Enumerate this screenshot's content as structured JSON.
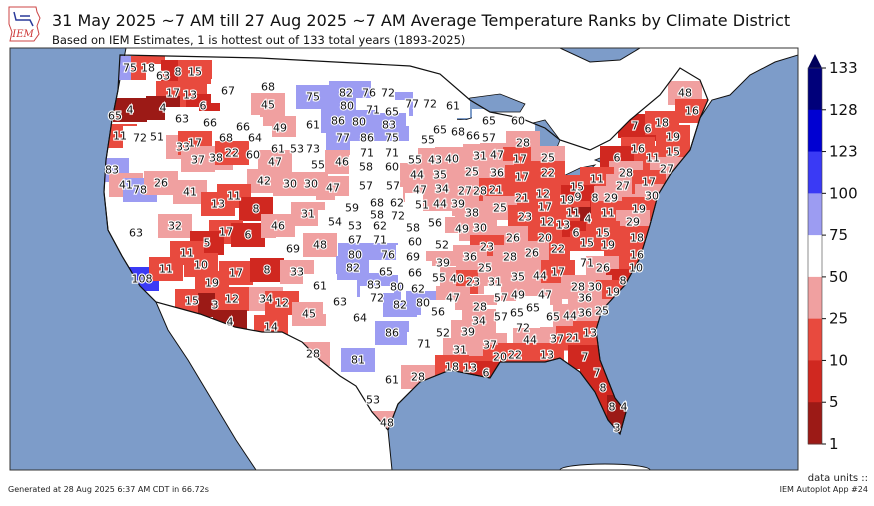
{
  "header": {
    "logo_text": "IEM",
    "title": "31 May 2025 ~7 AM till 27 Aug 2025 ~7 AM Average Temperature Ranks by Climate District",
    "subtitle": "Based on IEM Estimates, 1 is hottest out of 133 total years (1893-2025)"
  },
  "colorbar": {
    "ticks": [
      "133",
      "128",
      "123",
      "100",
      "75",
      "50",
      "25",
      "10",
      "5",
      "1"
    ],
    "bins": [
      {
        "min": 128,
        "max": 133,
        "color": "#00007a"
      },
      {
        "min": 123,
        "max": 128,
        "color": "#0000d2"
      },
      {
        "min": 100,
        "max": 123,
        "color": "#3a3af5"
      },
      {
        "min": 75,
        "max": 100,
        "color": "#9c9cf2"
      },
      {
        "min": 50,
        "max": 75,
        "color": "#ffffff"
      },
      {
        "min": 25,
        "max": 50,
        "color": "#f0a0a0"
      },
      {
        "min": 10,
        "max": 25,
        "color": "#e84a3e"
      },
      {
        "min": 5,
        "max": 10,
        "color": "#d02820"
      },
      {
        "min": 1,
        "max": 5,
        "color": "#9c1a16"
      }
    ],
    "extend_color": "#00005a"
  },
  "colors": {
    "ocean": "#7d9cc9",
    "land": "#ffffff",
    "border": "#111111"
  },
  "district_ranks": [
    75,
    18,
    63,
    8,
    15,
    17,
    13,
    6,
    65,
    4,
    4,
    63,
    66,
    11,
    72,
    51,
    67,
    68,
    45,
    75,
    49,
    61,
    66,
    68,
    64,
    61,
    53,
    73,
    60,
    47,
    55,
    33,
    17,
    37,
    38,
    22,
    83,
    41,
    78,
    26,
    41,
    42,
    30,
    30,
    47,
    13,
    11,
    8,
    32,
    17,
    6,
    46,
    31,
    54,
    63,
    5,
    11,
    69,
    48,
    82,
    76,
    72,
    77,
    72,
    61,
    80,
    71,
    65,
    86,
    80,
    83,
    77,
    86,
    75,
    46,
    71,
    58,
    71,
    60,
    57,
    57,
    59,
    68,
    58,
    62,
    72,
    53,
    62,
    67,
    71,
    80,
    76,
    82,
    65,
    83,
    80,
    72,
    82,
    108,
    11,
    10,
    17,
    8,
    33,
    19,
    15,
    3,
    12,
    4,
    34,
    12,
    61,
    45,
    14,
    63,
    64,
    86,
    28,
    81,
    61,
    53,
    48,
    65,
    60,
    65,
    68,
    66,
    57,
    55,
    28,
    55,
    43,
    40,
    31,
    47,
    17,
    25,
    25,
    36,
    17,
    22,
    44,
    35,
    48,
    16,
    7,
    6,
    18,
    19,
    16,
    15,
    6,
    11,
    27,
    28,
    11,
    27,
    17,
    15,
    19,
    9,
    8,
    29,
    30,
    47,
    34,
    27,
    28,
    21,
    21,
    12,
    51,
    44,
    39,
    38,
    25,
    23,
    17,
    11,
    4,
    11,
    19,
    29,
    12,
    13,
    6,
    15,
    15,
    19,
    18,
    16,
    58,
    56,
    49,
    30,
    60,
    52,
    26,
    20,
    22,
    23,
    26,
    69,
    36,
    28,
    39,
    25,
    71,
    26,
    10,
    8,
    66,
    55,
    40,
    23,
    31,
    35,
    44,
    17,
    62,
    80,
    28,
    30,
    19,
    47,
    57,
    49,
    47,
    36,
    56,
    28,
    57,
    65,
    65,
    65,
    44,
    36,
    25,
    34,
    52,
    39,
    72,
    13,
    37,
    21,
    71,
    31,
    37,
    44,
    7,
    20,
    22,
    13,
    18,
    13,
    6,
    7,
    28,
    8,
    8,
    4,
    3
  ],
  "footer": {
    "generated": "Generated at 28 Aug 2025 6:37 AM CDT in 66.72s",
    "units": "data units ::",
    "app": "IEM Autoplot App #24"
  }
}
